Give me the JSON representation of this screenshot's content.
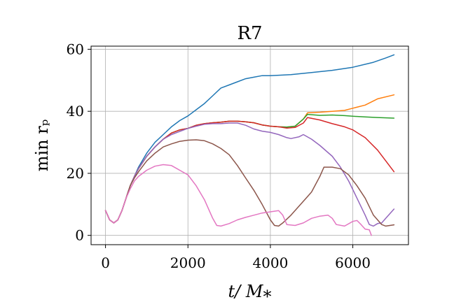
{
  "chart_data": {
    "type": "line",
    "title": "R7",
    "xlabel": "t/ M⁎",
    "ylabel": "min rₚ",
    "xlim": [
      -350,
      7350
    ],
    "ylim": [
      -3,
      61
    ],
    "xticks": [
      0,
      2000,
      4000,
      6000
    ],
    "xtick_labels": [
      "0",
      "2000",
      "4000",
      "6000"
    ],
    "yticks": [
      0,
      20,
      40,
      60
    ],
    "ytick_labels": [
      "0",
      "20",
      "40",
      "60"
    ],
    "grid": true,
    "series": [
      {
        "color": "#1f77b4",
        "x": [
          0,
          100,
          200,
          300,
          400,
          500,
          600,
          700,
          800,
          1000,
          1200,
          1400,
          1600,
          1800,
          2000,
          2200,
          2400,
          2600,
          2800,
          3000,
          3200,
          3400,
          3600,
          3800,
          4000,
          4500,
          5000,
          5500,
          6000,
          6500,
          6800,
          7000
        ],
        "y": [
          8,
          5,
          4,
          5,
          8,
          12,
          16,
          19,
          22,
          26.5,
          30,
          32.5,
          35,
          37,
          38.5,
          40.5,
          42.5,
          45,
          47.5,
          48.5,
          49.5,
          50.5,
          51,
          51.5,
          51.5,
          51.8,
          52.5,
          53.2,
          54.2,
          55.8,
          57.2,
          58.2
        ]
      },
      {
        "color": "#ff7f0e",
        "x": [
          0,
          100,
          200,
          300,
          400,
          500,
          600,
          700,
          800,
          1000,
          1200,
          1400,
          1600,
          1800,
          2000,
          2200,
          2400,
          2600,
          2800,
          3000,
          3200,
          3400,
          3600,
          3800,
          4000,
          4200,
          4400,
          4600,
          4800,
          4900,
          5200,
          5500,
          5800,
          6000,
          6300,
          6600,
          7000
        ],
        "y": [
          8,
          5,
          4,
          5,
          8,
          12,
          16,
          19,
          21.5,
          25.5,
          28.5,
          31,
          33,
          34,
          34.5,
          35.5,
          36,
          36.3,
          36.5,
          36.8,
          36.8,
          36.6,
          36.3,
          35.6,
          35.2,
          35,
          34.9,
          35.2,
          37.5,
          39.5,
          39.7,
          40,
          40.3,
          41,
          42,
          44,
          45.3
        ]
      },
      {
        "color": "#2ca02c",
        "x": [
          0,
          100,
          200,
          300,
          400,
          500,
          600,
          700,
          800,
          1000,
          1200,
          1400,
          1600,
          1800,
          2000,
          2200,
          2400,
          2600,
          2800,
          3000,
          3200,
          3400,
          3600,
          3800,
          4000,
          4200,
          4400,
          4600,
          4800,
          4900,
          5200,
          5500,
          5800,
          6000,
          6300,
          6600,
          7000
        ],
        "y": [
          8,
          5,
          4,
          5,
          8,
          12,
          16,
          19,
          21.5,
          25.5,
          28.5,
          31,
          33,
          34,
          34.5,
          35.5,
          36,
          36.3,
          36.5,
          36.8,
          36.8,
          36.6,
          36.3,
          35.6,
          35.2,
          35,
          34.9,
          35.2,
          37.5,
          39,
          38.7,
          38.8,
          38.6,
          38.4,
          38.2,
          38,
          37.8
        ]
      },
      {
        "color": "#d62728",
        "x": [
          0,
          100,
          200,
          300,
          400,
          500,
          600,
          700,
          800,
          1000,
          1200,
          1400,
          1600,
          1800,
          2000,
          2200,
          2400,
          2600,
          2800,
          3000,
          3200,
          3400,
          3600,
          3800,
          4000,
          4200,
          4400,
          4600,
          4800,
          4900,
          5200,
          5500,
          5800,
          6000,
          6300,
          6600,
          7000
        ],
        "y": [
          8,
          5,
          4,
          5,
          8,
          12,
          16,
          19,
          21.5,
          25.5,
          28.5,
          31,
          33,
          34,
          34.5,
          35.5,
          36,
          36.3,
          36.5,
          36.8,
          36.8,
          36.6,
          36.3,
          35.6,
          35.2,
          35,
          34.6,
          34.8,
          36.2,
          38,
          37.2,
          36,
          35,
          34,
          31.5,
          27.5,
          20.5
        ]
      },
      {
        "color": "#9467bd",
        "x": [
          0,
          100,
          200,
          300,
          400,
          500,
          600,
          700,
          800,
          1000,
          1200,
          1400,
          1600,
          1800,
          2000,
          2200,
          2400,
          2600,
          2800,
          3000,
          3200,
          3400,
          3600,
          3800,
          4000,
          4200,
          4400,
          4500,
          4700,
          4800,
          5000,
          5200,
          5500,
          5700,
          5900,
          6100,
          6300,
          6400,
          6500,
          6600,
          6700,
          6800,
          7000
        ],
        "y": [
          8,
          5,
          4,
          5,
          8,
          12,
          16,
          19,
          21.5,
          25.5,
          28.5,
          31,
          32.5,
          33.5,
          34.5,
          35.2,
          35.8,
          36,
          36,
          36.2,
          36.2,
          35.5,
          34.3,
          33.6,
          33.2,
          32.5,
          31.5,
          31.2,
          31.8,
          32.5,
          31,
          29,
          25.5,
          22,
          17.5,
          12,
          6.5,
          3.5,
          3,
          3.8,
          4,
          5.5,
          8.5
        ]
      },
      {
        "color": "#8c564b",
        "x": [
          0,
          100,
          200,
          300,
          400,
          500,
          600,
          700,
          800,
          1000,
          1200,
          1400,
          1600,
          1800,
          2000,
          2200,
          2400,
          2600,
          2800,
          3000,
          3200,
          3400,
          3600,
          3800,
          3900,
          4000,
          4100,
          4200,
          4300,
          4500,
          4700,
          4900,
          5000,
          5200,
          5300,
          5500,
          5700,
          5900,
          6100,
          6300,
          6500,
          6700,
          6800,
          7000
        ],
        "y": [
          8,
          5,
          4,
          5,
          8,
          12,
          16,
          18.5,
          20.5,
          24,
          26.5,
          28.5,
          29.5,
          30.3,
          30.7,
          30.8,
          30.5,
          29.5,
          28,
          26,
          22.5,
          18.5,
          14.5,
          10,
          7.5,
          5,
          3.2,
          3,
          4,
          6.5,
          9.5,
          12.5,
          14,
          19,
          22,
          22,
          21.5,
          19.5,
          16,
          12,
          6.5,
          3.5,
          3,
          3.4
        ]
      },
      {
        "color": "#e377c2",
        "x": [
          0,
          100,
          200,
          300,
          400,
          500,
          600,
          700,
          800,
          1000,
          1200,
          1400,
          1600,
          1800,
          2000,
          2200,
          2400,
          2600,
          2700,
          2800,
          3000,
          3200,
          3400,
          3600,
          3800,
          4000,
          4200,
          4300,
          4400,
          4600,
          4800,
          5000,
          5200,
          5400,
          5500,
          5600,
          5800,
          6000,
          6100,
          6200,
          6300,
          6400,
          6450
        ],
        "y": [
          8,
          5,
          4,
          5,
          8,
          12,
          15,
          17.5,
          19,
          21,
          22.3,
          22.8,
          22.5,
          21,
          19.5,
          16,
          11.5,
          5.5,
          3.2,
          3,
          3.8,
          5,
          5.8,
          6.5,
          7.2,
          7.6,
          8,
          6.5,
          3.5,
          3.2,
          4,
          5.5,
          6.2,
          6.5,
          5.5,
          3.5,
          3,
          4.5,
          4.8,
          3.5,
          2,
          1.8,
          0
        ]
      }
    ]
  }
}
